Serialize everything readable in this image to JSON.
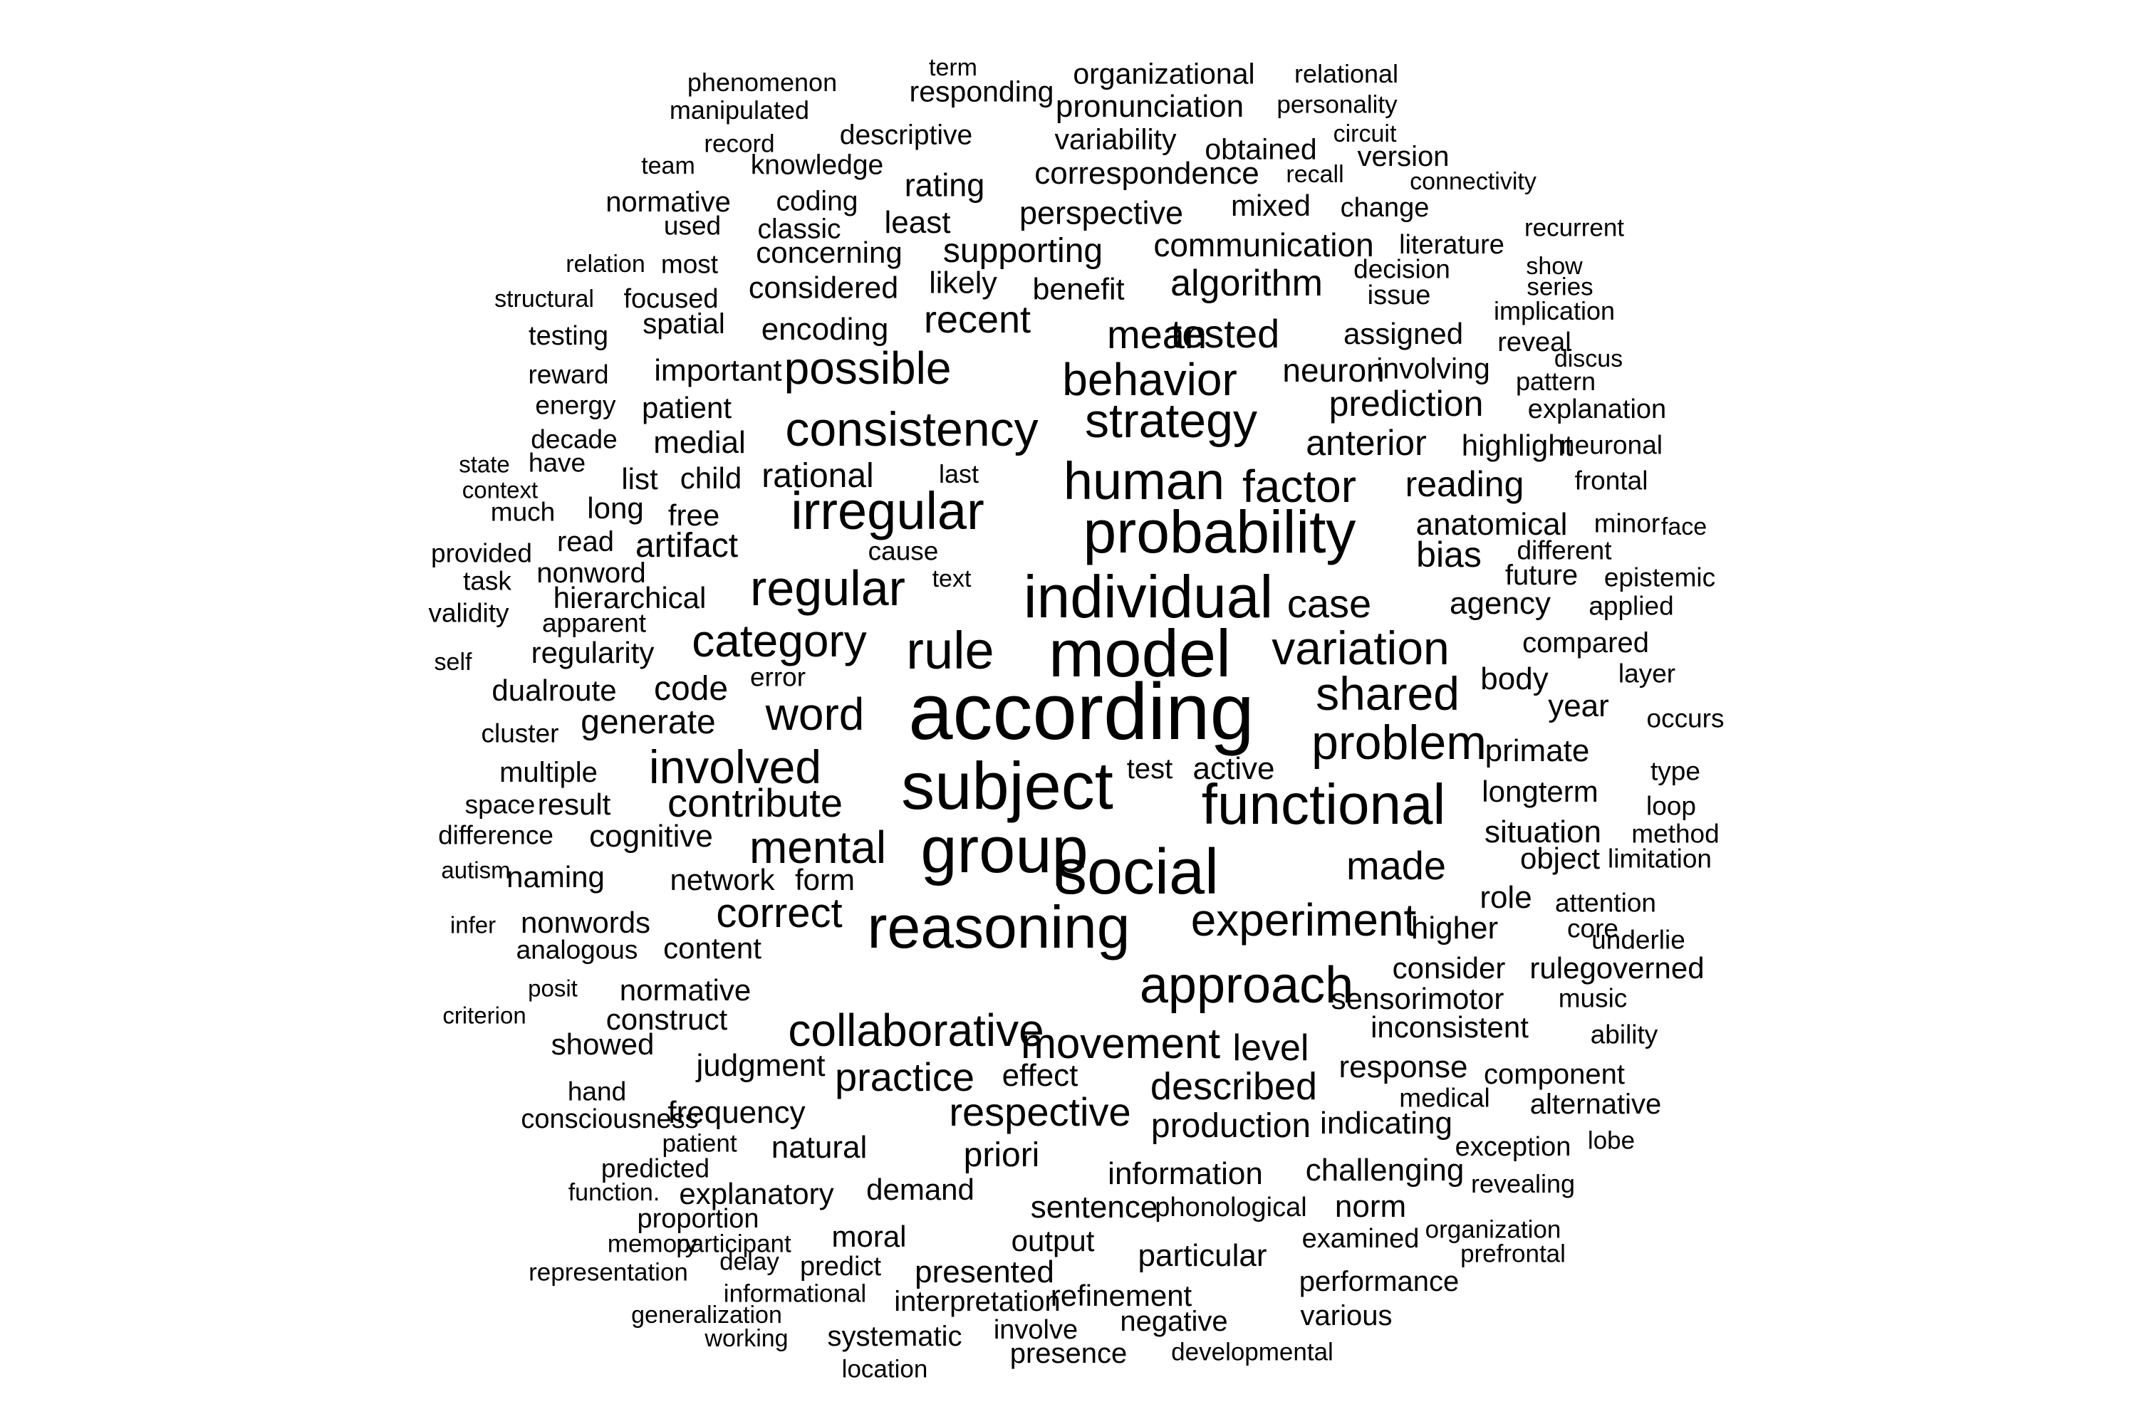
{
  "color": "#000000",
  "words": [
    {
      "text": "term"
    },
    {
      "text": "phenomenon"
    },
    {
      "text": "responding"
    },
    {
      "text": "organizational"
    },
    {
      "text": "relational"
    },
    {
      "text": "manipulated"
    },
    {
      "text": "pronunciation"
    },
    {
      "text": "personality"
    },
    {
      "text": "descriptive"
    },
    {
      "text": "circuit"
    },
    {
      "text": "record"
    },
    {
      "text": "variability"
    },
    {
      "text": "obtained"
    },
    {
      "text": "version"
    },
    {
      "text": "team"
    },
    {
      "text": "knowledge"
    },
    {
      "text": "correspondence"
    },
    {
      "text": "recall"
    },
    {
      "text": "connectivity"
    },
    {
      "text": "rating"
    },
    {
      "text": "normative"
    },
    {
      "text": "coding"
    },
    {
      "text": "perspective"
    },
    {
      "text": "mixed"
    },
    {
      "text": "change"
    },
    {
      "text": "used"
    },
    {
      "text": "classic"
    },
    {
      "text": "least"
    },
    {
      "text": "recurrent"
    },
    {
      "text": "communication"
    },
    {
      "text": "literature"
    },
    {
      "text": "concerning"
    },
    {
      "text": "supporting"
    },
    {
      "text": "relation"
    },
    {
      "text": "most"
    },
    {
      "text": "decision"
    },
    {
      "text": "show"
    },
    {
      "text": "algorithm"
    },
    {
      "text": "likely"
    },
    {
      "text": "series"
    },
    {
      "text": "considered"
    },
    {
      "text": "benefit"
    },
    {
      "text": "structural"
    },
    {
      "text": "focused"
    },
    {
      "text": "issue"
    },
    {
      "text": "implication"
    },
    {
      "text": "spatial"
    },
    {
      "text": "recent"
    },
    {
      "text": "testing"
    },
    {
      "text": "encoding"
    },
    {
      "text": "mean"
    },
    {
      "text": "tested"
    },
    {
      "text": "assigned"
    },
    {
      "text": "reveal"
    },
    {
      "text": "discus"
    },
    {
      "text": "possible"
    },
    {
      "text": "reward"
    },
    {
      "text": "important"
    },
    {
      "text": "neuron"
    },
    {
      "text": "involving"
    },
    {
      "text": "behavior"
    },
    {
      "text": "pattern"
    },
    {
      "text": "energy"
    },
    {
      "text": "prediction"
    },
    {
      "text": "patient"
    },
    {
      "text": "explanation"
    },
    {
      "text": "strategy"
    },
    {
      "text": "consistency"
    },
    {
      "text": "decade"
    },
    {
      "text": "medial"
    },
    {
      "text": "anterior"
    },
    {
      "text": "highlight"
    },
    {
      "text": "neuronal"
    },
    {
      "text": "state"
    },
    {
      "text": "have"
    },
    {
      "text": "human"
    },
    {
      "text": "factor"
    },
    {
      "text": "rational"
    },
    {
      "text": "last"
    },
    {
      "text": "list"
    },
    {
      "text": "child"
    },
    {
      "text": "reading"
    },
    {
      "text": "frontal"
    },
    {
      "text": "context"
    },
    {
      "text": "much"
    },
    {
      "text": "irregular"
    },
    {
      "text": "long"
    },
    {
      "text": "free"
    },
    {
      "text": "anatomical"
    },
    {
      "text": "minor"
    },
    {
      "text": "face"
    },
    {
      "text": "probability"
    },
    {
      "text": "read"
    },
    {
      "text": "artifact"
    },
    {
      "text": "provided"
    },
    {
      "text": "cause"
    },
    {
      "text": "bias"
    },
    {
      "text": "different"
    },
    {
      "text": "nonword"
    },
    {
      "text": "future"
    },
    {
      "text": "epistemic"
    },
    {
      "text": "task"
    },
    {
      "text": "text"
    },
    {
      "text": "regular"
    },
    {
      "text": "individual"
    },
    {
      "text": "validity"
    },
    {
      "text": "hierarchical"
    },
    {
      "text": "case"
    },
    {
      "text": "agency"
    },
    {
      "text": "applied"
    },
    {
      "text": "apparent"
    },
    {
      "text": "category"
    },
    {
      "text": "variation"
    },
    {
      "text": "compared"
    },
    {
      "text": "regularity"
    },
    {
      "text": "model"
    },
    {
      "text": "rule"
    },
    {
      "text": "self"
    },
    {
      "text": "error"
    },
    {
      "text": "body"
    },
    {
      "text": "layer"
    },
    {
      "text": "dualroute"
    },
    {
      "text": "code"
    },
    {
      "text": "shared"
    },
    {
      "text": "year"
    },
    {
      "text": "according"
    },
    {
      "text": "word"
    },
    {
      "text": "occurs"
    },
    {
      "text": "cluster"
    },
    {
      "text": "generate"
    },
    {
      "text": "problem"
    },
    {
      "text": "primate"
    },
    {
      "text": "involved"
    },
    {
      "text": "test"
    },
    {
      "text": "active"
    },
    {
      "text": "type"
    },
    {
      "text": "subject"
    },
    {
      "text": "multiple"
    },
    {
      "text": "longterm"
    },
    {
      "text": "space"
    },
    {
      "text": "result"
    },
    {
      "text": "contribute"
    },
    {
      "text": "functional"
    },
    {
      "text": "loop"
    },
    {
      "text": "difference"
    },
    {
      "text": "cognitive"
    },
    {
      "text": "situation"
    },
    {
      "text": "method"
    },
    {
      "text": "mental"
    },
    {
      "text": "group"
    },
    {
      "text": "object"
    },
    {
      "text": "limitation"
    },
    {
      "text": "autism"
    },
    {
      "text": "naming"
    },
    {
      "text": "network"
    },
    {
      "text": "form"
    },
    {
      "text": "social"
    },
    {
      "text": "made"
    },
    {
      "text": "role"
    },
    {
      "text": "attention"
    },
    {
      "text": "correct"
    },
    {
      "text": "experiment"
    },
    {
      "text": "infer"
    },
    {
      "text": "nonwords"
    },
    {
      "text": "reasoning"
    },
    {
      "text": "higher"
    },
    {
      "text": "core"
    },
    {
      "text": "underlie"
    },
    {
      "text": "analogous"
    },
    {
      "text": "content"
    },
    {
      "text": "consider"
    },
    {
      "text": "rulegoverned"
    },
    {
      "text": "approach"
    },
    {
      "text": "posit"
    },
    {
      "text": "normative"
    },
    {
      "text": "sensorimotor"
    },
    {
      "text": "music"
    },
    {
      "text": "criterion"
    },
    {
      "text": "construct"
    },
    {
      "text": "inconsistent"
    },
    {
      "text": "collaborative"
    },
    {
      "text": "movement"
    },
    {
      "text": "level"
    },
    {
      "text": "ability"
    },
    {
      "text": "showed"
    },
    {
      "text": "response"
    },
    {
      "text": "judgment"
    },
    {
      "text": "practice"
    },
    {
      "text": "effect"
    },
    {
      "text": "component"
    },
    {
      "text": "described"
    },
    {
      "text": "hand"
    },
    {
      "text": "medical"
    },
    {
      "text": "alternative"
    },
    {
      "text": "respective"
    },
    {
      "text": "frequency"
    },
    {
      "text": "consciousness"
    },
    {
      "text": "indicating"
    },
    {
      "text": "production"
    },
    {
      "text": "patient"
    },
    {
      "text": "lobe"
    },
    {
      "text": "natural"
    },
    {
      "text": "exception"
    },
    {
      "text": "priori"
    },
    {
      "text": "predicted"
    },
    {
      "text": "information"
    },
    {
      "text": "challenging"
    },
    {
      "text": "revealing"
    },
    {
      "text": "demand"
    },
    {
      "text": "function."
    },
    {
      "text": "explanatory"
    },
    {
      "text": "sentence"
    },
    {
      "text": "phonological"
    },
    {
      "text": "norm"
    },
    {
      "text": "proportion"
    },
    {
      "text": "organization"
    },
    {
      "text": "moral"
    },
    {
      "text": "participant"
    },
    {
      "text": "memory"
    },
    {
      "text": "output"
    },
    {
      "text": "examined"
    },
    {
      "text": "prefrontal"
    },
    {
      "text": "particular"
    },
    {
      "text": "delay"
    },
    {
      "text": "predict"
    },
    {
      "text": "representation"
    },
    {
      "text": "presented"
    },
    {
      "text": "performance"
    },
    {
      "text": "informational"
    },
    {
      "text": "refinement"
    },
    {
      "text": "interpretation"
    },
    {
      "text": "generalization"
    },
    {
      "text": "various"
    },
    {
      "text": "negative"
    },
    {
      "text": "involve"
    },
    {
      "text": "working"
    },
    {
      "text": "systematic"
    },
    {
      "text": "developmental"
    },
    {
      "text": "presence"
    },
    {
      "text": "location"
    }
  ]
}
